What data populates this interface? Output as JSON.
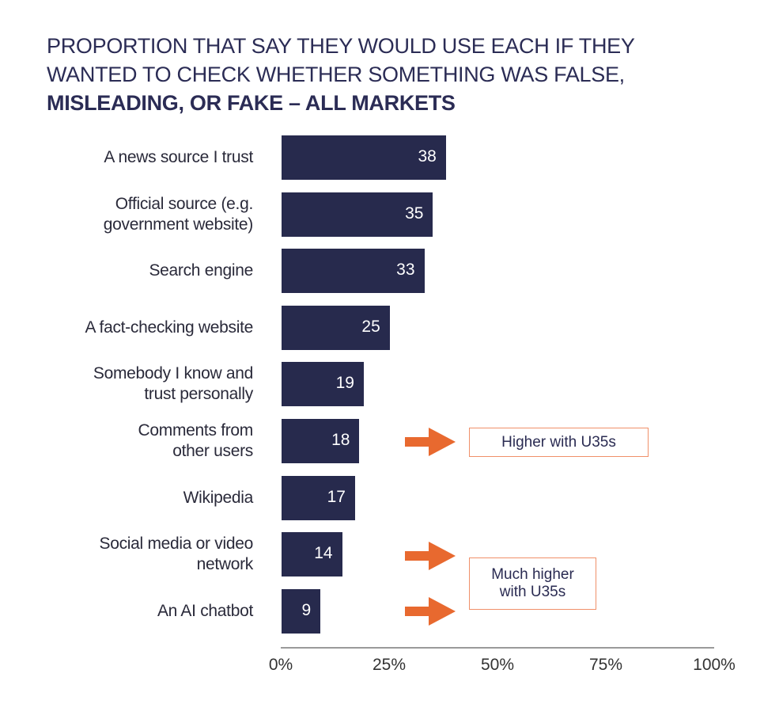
{
  "chart_data": {
    "type": "bar",
    "orientation": "horizontal",
    "title_line1": "PROPORTION THAT SAY THEY WOULD USE EACH IF THEY",
    "title_line2": "WANTED TO CHECK WHETHER SOMETHING WAS FALSE,",
    "title_line3": "MISLEADING, OR FAKE – ALL MARKETS",
    "categories": [
      [
        "A news source I trust"
      ],
      [
        "Official source (e.g.",
        "government website)"
      ],
      [
        "Search engine"
      ],
      [
        "A fact-checking website"
      ],
      [
        "Somebody I know and",
        "trust personally"
      ],
      [
        "Comments from",
        "other users"
      ],
      [
        "Wikipedia"
      ],
      [
        "Social media or video",
        "network"
      ],
      [
        "An AI chatbot"
      ]
    ],
    "values": [
      38,
      35,
      33,
      25,
      19,
      18,
      17,
      14,
      9
    ],
    "xlim": [
      0,
      100
    ],
    "xticks": [
      "0%",
      "25%",
      "50%",
      "75%",
      "100%"
    ],
    "bar_color": "#272a4d",
    "grid": false,
    "annotations": [
      {
        "text": [
          "Higher with U35s"
        ],
        "targets": [
          "Comments from other users"
        ],
        "color": "#e8692f"
      },
      {
        "text": [
          "Much higher",
          "with U35s"
        ],
        "targets": [
          "Social media or video network",
          "An AI chatbot"
        ],
        "color": "#e8692f"
      }
    ]
  }
}
